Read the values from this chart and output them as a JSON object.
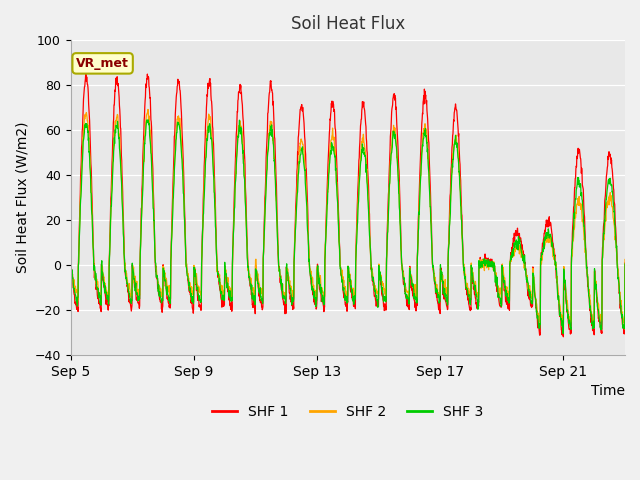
{
  "title": "Soil Heat Flux",
  "xlabel": "Time",
  "ylabel": "Soil Heat Flux (W/m2)",
  "ylim": [
    -40,
    100
  ],
  "yticks": [
    -40,
    -20,
    0,
    20,
    40,
    60,
    80,
    100
  ],
  "line_colors": {
    "SHF 1": "#ff0000",
    "SHF 2": "#ffa500",
    "SHF 3": "#00cc00"
  },
  "legend_labels": [
    "SHF 1",
    "SHF 2",
    "SHF 3"
  ],
  "fig_bg_color": "#f0f0f0",
  "plot_bg_color": "#e8e8e8",
  "vr_met_label": "VR_met",
  "x_tick_labels": [
    "Sep 5",
    "Sep 9",
    "Sep 13",
    "Sep 17",
    "Sep 21"
  ],
  "x_tick_positions": [
    0,
    4,
    8,
    12,
    16
  ],
  "days": 18,
  "points_per_day": 96,
  "peak1": [
    84,
    83,
    84,
    82,
    82,
    80,
    80,
    71,
    72,
    71,
    75,
    76,
    70,
    2,
    14,
    19,
    51,
    49
  ],
  "peak2": [
    68,
    66,
    68,
    66,
    66,
    63,
    63,
    56,
    58,
    56,
    60,
    61,
    56,
    1,
    8,
    12,
    28,
    30
  ],
  "peak3": [
    63,
    62,
    64,
    63,
    62,
    61,
    61,
    51,
    54,
    52,
    58,
    59,
    55,
    1,
    10,
    14,
    37,
    38
  ],
  "night_base": -20,
  "night_base_late": -30
}
